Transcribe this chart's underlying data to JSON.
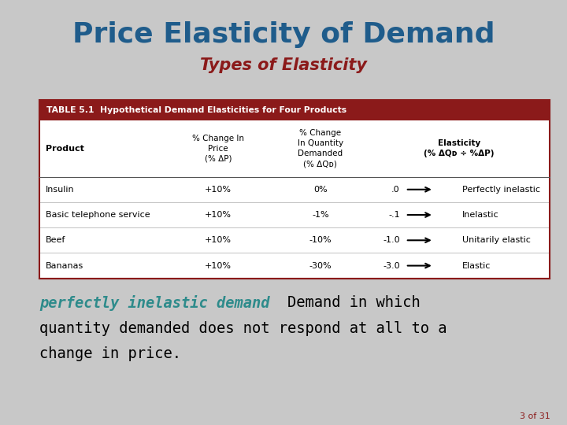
{
  "title": "Price Elasticity of Demand",
  "subtitle": "Types of Elasticity",
  "title_color": "#1F5C8B",
  "subtitle_color": "#8B1A1A",
  "background_color": "#C8C8C8",
  "table_header_text": "TABLE 5.1  Hypothetical Demand Elasticities for Four Products",
  "table_header_bg": "#8B1A1A",
  "table_header_text_color": "#FFFFFF",
  "rows": [
    [
      "Insulin",
      "+10%",
      "0%",
      ".0",
      "Perfectly inelastic"
    ],
    [
      "Basic telephone service",
      "+10%",
      "-1%",
      "-.1",
      "Inelastic"
    ],
    [
      "Beef",
      "+10%",
      "-10%",
      "-1.0",
      "Unitarily elastic"
    ],
    [
      "Bananas",
      "+10%",
      "-30%",
      "-3.0",
      "Elastic"
    ]
  ],
  "definition_bold": "perfectly inelastic demand",
  "definition_bold_color": "#2E8B8B",
  "definition_rest1": "  Demand in which",
  "definition_rest2": "quantity demanded does not respond at all to a",
  "definition_rest3": "change in price.",
  "definition_text_color": "#000000",
  "slide_number": "3 of 31",
  "slide_number_color": "#8B1A1A"
}
